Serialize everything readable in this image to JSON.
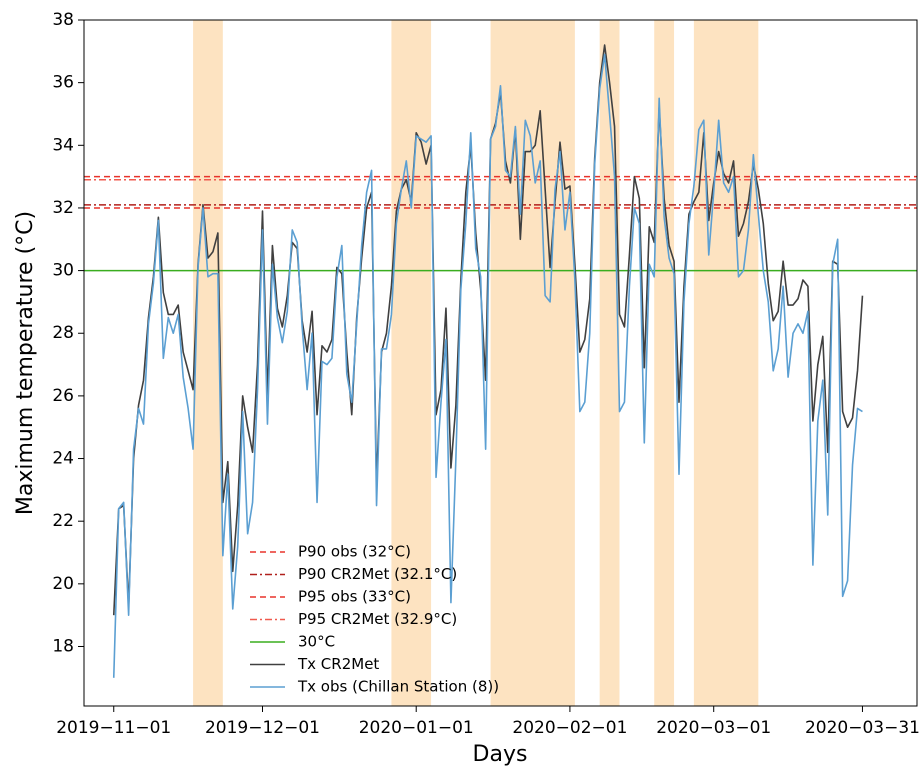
{
  "chart_data": {
    "type": "line",
    "xlabel": "Days",
    "ylabel": "Maximum temperature (°C)",
    "x": [
      "2019-11-01",
      "2019-11-02",
      "2019-11-03",
      "2019-11-04",
      "2019-11-05",
      "2019-11-06",
      "2019-11-07",
      "2019-11-08",
      "2019-11-09",
      "2019-11-10",
      "2019-11-11",
      "2019-11-12",
      "2019-11-13",
      "2019-11-14",
      "2019-11-15",
      "2019-11-16",
      "2019-11-17",
      "2019-11-18",
      "2019-11-19",
      "2019-11-20",
      "2019-11-21",
      "2019-11-22",
      "2019-11-23",
      "2019-11-24",
      "2019-11-25",
      "2019-11-26",
      "2019-11-27",
      "2019-11-28",
      "2019-11-29",
      "2019-11-30",
      "2019-12-01",
      "2019-12-02",
      "2019-12-03",
      "2019-12-04",
      "2019-12-05",
      "2019-12-06",
      "2019-12-07",
      "2019-12-08",
      "2019-12-09",
      "2019-12-10",
      "2019-12-11",
      "2019-12-12",
      "2019-12-13",
      "2019-12-14",
      "2019-12-15",
      "2019-12-16",
      "2019-12-17",
      "2019-12-18",
      "2019-12-19",
      "2019-12-20",
      "2019-12-21",
      "2019-12-22",
      "2019-12-23",
      "2019-12-24",
      "2019-12-25",
      "2019-12-26",
      "2019-12-27",
      "2019-12-28",
      "2019-12-29",
      "2019-12-30",
      "2019-12-31",
      "2020-01-01",
      "2020-01-02",
      "2020-01-03",
      "2020-01-04",
      "2020-01-05",
      "2020-01-06",
      "2020-01-07",
      "2020-01-08",
      "2020-01-09",
      "2020-01-10",
      "2020-01-11",
      "2020-01-12",
      "2020-01-13",
      "2020-01-14",
      "2020-01-15",
      "2020-01-16",
      "2020-01-17",
      "2020-01-18",
      "2020-01-19",
      "2020-01-20",
      "2020-01-21",
      "2020-01-22",
      "2020-01-23",
      "2020-01-24",
      "2020-01-25",
      "2020-01-26",
      "2020-01-27",
      "2020-01-28",
      "2020-01-29",
      "2020-01-30",
      "2020-01-31",
      "2020-02-01",
      "2020-02-02",
      "2020-02-03",
      "2020-02-04",
      "2020-02-05",
      "2020-02-06",
      "2020-02-07",
      "2020-02-08",
      "2020-02-09",
      "2020-02-10",
      "2020-02-11",
      "2020-02-12",
      "2020-02-13",
      "2020-02-14",
      "2020-02-15",
      "2020-02-16",
      "2020-02-17",
      "2020-02-18",
      "2020-02-19",
      "2020-02-20",
      "2020-02-21",
      "2020-02-22",
      "2020-02-23",
      "2020-02-24",
      "2020-02-25",
      "2020-02-26",
      "2020-02-27",
      "2020-02-28",
      "2020-02-29",
      "2020-03-01",
      "2020-03-02",
      "2020-03-03",
      "2020-03-04",
      "2020-03-05",
      "2020-03-06",
      "2020-03-07",
      "2020-03-08",
      "2020-03-09",
      "2020-03-10",
      "2020-03-11",
      "2020-03-12",
      "2020-03-13",
      "2020-03-14",
      "2020-03-15",
      "2020-03-16",
      "2020-03-17",
      "2020-03-18",
      "2020-03-19",
      "2020-03-20",
      "2020-03-21",
      "2020-03-22",
      "2020-03-23",
      "2020-03-24",
      "2020-03-25",
      "2020-03-26",
      "2020-03-27",
      "2020-03-28",
      "2020-03-29",
      "2020-03-30",
      "2020-03-31"
    ],
    "series": [
      {
        "name": "Tx CR2Met",
        "color": "#404040",
        "values": [
          19.0,
          22.4,
          22.5,
          19.3,
          24.0,
          25.7,
          26.5,
          28.5,
          29.8,
          31.7,
          29.3,
          28.6,
          28.6,
          28.9,
          27.4,
          26.8,
          26.2,
          30.2,
          32.1,
          30.4,
          30.6,
          31.2,
          22.6,
          23.9,
          20.4,
          22.5,
          26.0,
          25.0,
          24.2,
          27.0,
          31.9,
          26.0,
          30.8,
          28.8,
          28.2,
          29.2,
          30.9,
          30.7,
          28.4,
          27.4,
          28.7,
          25.4,
          27.6,
          27.4,
          27.8,
          30.1,
          29.9,
          27.4,
          25.4,
          28.5,
          30.4,
          32.0,
          32.5,
          23.2,
          27.4,
          28.0,
          29.5,
          31.9,
          32.6,
          32.9,
          32.2,
          34.4,
          34.1,
          33.4,
          34.0,
          25.4,
          26.2,
          28.8,
          23.7,
          25.7,
          29.7,
          32.5,
          34.0,
          31.2,
          29.4,
          26.5,
          34.2,
          34.7,
          35.7,
          33.5,
          32.8,
          34.5,
          31.0,
          33.8,
          33.8,
          34.0,
          35.1,
          32.6,
          30.1,
          32.2,
          34.1,
          32.6,
          32.7,
          30.2,
          27.4,
          27.8,
          29.1,
          33.6,
          36.0,
          37.2,
          36.0,
          34.6,
          28.6,
          28.2,
          30.5,
          33.0,
          32.3,
          26.9,
          31.4,
          30.9,
          35.2,
          32.3,
          30.8,
          30.3,
          25.8,
          29.5,
          31.8,
          32.2,
          32.5,
          34.4,
          31.6,
          32.8,
          33.8,
          33.1,
          32.8,
          33.5,
          31.1,
          31.5,
          32.2,
          33.4,
          32.6,
          31.5,
          29.6,
          28.4,
          28.7,
          30.3,
          28.9,
          28.9,
          29.1,
          29.7,
          29.5,
          25.2,
          27.0,
          27.9,
          24.2,
          30.3,
          30.2,
          25.5,
          25.0,
          25.3,
          26.8,
          29.2
        ]
      },
      {
        "name": "Tx obs (Chillan Station (8))",
        "color": "#5b9fd2",
        "values": [
          17.0,
          22.4,
          22.6,
          19.0,
          24.3,
          25.6,
          25.1,
          28.3,
          29.6,
          31.6,
          27.2,
          28.5,
          28.0,
          28.6,
          26.6,
          25.6,
          24.3,
          30.1,
          32.0,
          29.8,
          29.9,
          29.9,
          20.9,
          23.5,
          19.2,
          21.2,
          25.5,
          21.6,
          22.6,
          26.2,
          31.3,
          25.1,
          30.2,
          28.5,
          27.7,
          28.7,
          31.3,
          30.9,
          28.2,
          26.2,
          28.0,
          22.6,
          27.1,
          27.0,
          27.2,
          29.8,
          30.8,
          26.7,
          25.8,
          28.3,
          30.8,
          32.5,
          33.2,
          22.5,
          27.5,
          27.5,
          28.6,
          31.5,
          32.6,
          33.5,
          32.0,
          34.3,
          34.2,
          34.1,
          34.3,
          23.4,
          25.8,
          27.8,
          19.4,
          24.0,
          29.4,
          31.5,
          34.4,
          30.7,
          29.8,
          24.3,
          34.2,
          34.6,
          35.9,
          33.2,
          33.0,
          34.6,
          31.8,
          34.8,
          34.3,
          32.8,
          33.5,
          29.2,
          29.0,
          32.6,
          33.8,
          31.3,
          32.5,
          29.7,
          25.5,
          25.8,
          28.0,
          33.4,
          35.8,
          36.9,
          35.0,
          33.0,
          25.5,
          25.8,
          29.5,
          32.0,
          31.5,
          24.5,
          30.2,
          29.8,
          35.5,
          31.7,
          30.4,
          29.9,
          23.5,
          29.0,
          31.5,
          32.7,
          34.5,
          34.8,
          30.5,
          32.5,
          34.8,
          32.8,
          32.5,
          33.0,
          29.8,
          30.0,
          31.3,
          33.7,
          31.8,
          30.0,
          29.0,
          26.8,
          27.5,
          29.5,
          26.6,
          28.0,
          28.3,
          28.0,
          28.7,
          20.6,
          25.2,
          26.5,
          22.2,
          30.2,
          31.0,
          19.6,
          20.1,
          23.8,
          25.6,
          25.5
        ]
      }
    ],
    "hlines": [
      {
        "name": "P90 obs (32°C)",
        "value": 32,
        "color": "#e8332b",
        "dash": "6 4"
      },
      {
        "name": "P90 CR2Met (32.1°C)",
        "value": 32.1,
        "color": "#b0201c",
        "dash": "7 3 2 3"
      },
      {
        "name": "P95 obs (33°C)",
        "value": 33,
        "color": "#e8332b",
        "dash": "6 4"
      },
      {
        "name": "P95 CR2Met (32.9°C)",
        "value": 32.9,
        "color": "#f05a4e",
        "dash": "7 3 2 3"
      },
      {
        "name": "30°C",
        "value": 30,
        "color": "#3aad1f",
        "dash": "none"
      }
    ],
    "shaded_periods": [
      {
        "start": "2019-11-17",
        "end": "2019-11-23"
      },
      {
        "start": "2019-12-27",
        "end": "2020-01-04"
      },
      {
        "start": "2020-01-16",
        "end": "2020-02-02"
      },
      {
        "start": "2020-02-07",
        "end": "2020-02-11"
      },
      {
        "start": "2020-02-18",
        "end": "2020-02-22"
      },
      {
        "start": "2020-02-26",
        "end": "2020-03-10"
      }
    ],
    "shade_color": "#fde3c1",
    "xlim": [
      "2019-10-26",
      "2020-04-11"
    ],
    "xticks": [
      {
        "value": "2019-11-01",
        "label": "2019−11−01"
      },
      {
        "value": "2019-12-01",
        "label": "2019−12−01"
      },
      {
        "value": "2020-01-01",
        "label": "2020−01−01"
      },
      {
        "value": "2020-02-01",
        "label": "2020−02−01"
      },
      {
        "value": "2020-03-01",
        "label": "2020−03−01"
      },
      {
        "value": "2020-03-31",
        "label": "2020−03−31"
      }
    ],
    "ylim": [
      16.1,
      38
    ],
    "yticks": [
      18,
      20,
      22,
      24,
      26,
      28,
      30,
      32,
      34,
      36,
      38
    ]
  }
}
